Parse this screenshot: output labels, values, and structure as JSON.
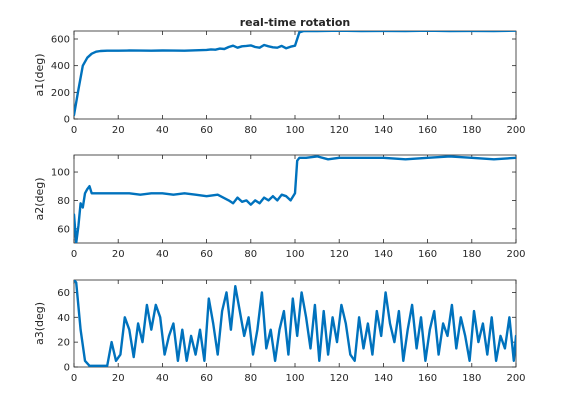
{
  "figure": {
    "title": "real-time rotation",
    "line_color": "#0072BD"
  },
  "chart_data": [
    {
      "type": "line",
      "title": "real-time rotation",
      "xlabel": "",
      "ylabel": "a1(deg)",
      "xlim": [
        0,
        200
      ],
      "ylim": [
        0,
        660
      ],
      "xticks": [
        0,
        20,
        40,
        60,
        80,
        100,
        120,
        140,
        160,
        180,
        200
      ],
      "yticks": [
        0,
        200,
        400,
        600
      ],
      "grid": false,
      "series": [
        {
          "x": [
            0,
            2,
            4,
            6,
            8,
            10,
            12,
            15,
            20,
            25,
            30,
            35,
            40,
            45,
            50,
            55,
            60,
            62,
            64,
            66,
            68,
            70,
            72,
            74,
            76,
            78,
            80,
            82,
            84,
            86,
            88,
            90,
            92,
            94,
            96,
            98,
            100,
            102,
            104,
            110,
            120,
            130,
            140,
            150,
            160,
            170,
            180,
            190,
            200
          ],
          "y": [
            30,
            220,
            400,
            460,
            490,
            505,
            510,
            512,
            512,
            514,
            513,
            512,
            514,
            513,
            512,
            515,
            518,
            522,
            520,
            528,
            525,
            540,
            550,
            535,
            545,
            548,
            552,
            540,
            535,
            555,
            545,
            538,
            535,
            548,
            530,
            542,
            550,
            650,
            660,
            660,
            662,
            660,
            661,
            660,
            662,
            660,
            661,
            660,
            662
          ]
        }
      ]
    },
    {
      "type": "line",
      "xlabel": "",
      "ylabel": "a2(deg)",
      "xlim": [
        0,
        200
      ],
      "ylim": [
        50,
        112
      ],
      "xticks": [
        0,
        20,
        40,
        60,
        80,
        100,
        120,
        140,
        160,
        180,
        200
      ],
      "yticks": [
        60,
        80,
        100
      ],
      "grid": false,
      "series": [
        {
          "x": [
            0,
            1,
            2,
            3,
            4,
            5,
            6,
            7,
            8,
            9,
            10,
            12,
            15,
            20,
            25,
            30,
            35,
            40,
            45,
            50,
            55,
            60,
            65,
            70,
            72,
            74,
            76,
            78,
            80,
            82,
            84,
            86,
            88,
            90,
            92,
            94,
            96,
            98,
            100,
            101,
            102,
            105,
            110,
            115,
            120,
            130,
            140,
            150,
            160,
            170,
            180,
            190,
            200
          ],
          "y": [
            70,
            50,
            62,
            78,
            75,
            85,
            88,
            90,
            85,
            85,
            85,
            85,
            85,
            85,
            85,
            84,
            85,
            85,
            84,
            85,
            84,
            83,
            84,
            80,
            78,
            82,
            79,
            80,
            77,
            80,
            78,
            82,
            80,
            83,
            80,
            84,
            83,
            80,
            85,
            108,
            110,
            110,
            111,
            109,
            110,
            110,
            110,
            109,
            110,
            111,
            110,
            109,
            110
          ]
        }
      ]
    },
    {
      "type": "line",
      "xlabel": "",
      "ylabel": "a3(deg)",
      "xlim": [
        0,
        200
      ],
      "ylim": [
        0,
        70
      ],
      "xticks": [
        0,
        20,
        40,
        60,
        80,
        100,
        120,
        140,
        160,
        180,
        200
      ],
      "yticks": [
        0,
        20,
        40,
        60
      ],
      "grid": false,
      "series": [
        {
          "x": [
            0,
            1,
            3,
            5,
            7,
            10,
            13,
            15,
            17,
            19,
            21,
            23,
            25,
            27,
            29,
            31,
            33,
            35,
            37,
            39,
            41,
            43,
            45,
            47,
            49,
            51,
            53,
            55,
            57,
            59,
            61,
            63,
            65,
            67,
            69,
            71,
            73,
            75,
            77,
            79,
            81,
            83,
            85,
            87,
            89,
            91,
            93,
            95,
            97,
            99,
            101,
            103,
            105,
            107,
            109,
            111,
            113,
            115,
            117,
            119,
            121,
            123,
            125,
            127,
            129,
            131,
            133,
            135,
            137,
            139,
            141,
            143,
            145,
            147,
            149,
            151,
            153,
            155,
            157,
            159,
            161,
            163,
            165,
            167,
            169,
            171,
            173,
            175,
            177,
            179,
            181,
            183,
            185,
            187,
            189,
            191,
            193,
            195,
            197,
            199,
            200
          ],
          "y": [
            70,
            68,
            30,
            5,
            1,
            1,
            1,
            1,
            20,
            5,
            10,
            40,
            30,
            8,
            35,
            20,
            50,
            30,
            50,
            40,
            10,
            25,
            35,
            5,
            30,
            5,
            25,
            10,
            30,
            5,
            55,
            35,
            10,
            45,
            60,
            30,
            65,
            45,
            25,
            40,
            10,
            30,
            60,
            15,
            30,
            5,
            30,
            45,
            10,
            55,
            25,
            60,
            40,
            15,
            50,
            5,
            45,
            10,
            40,
            20,
            50,
            35,
            10,
            5,
            40,
            15,
            35,
            10,
            45,
            25,
            60,
            35,
            20,
            45,
            5,
            30,
            50,
            15,
            40,
            5,
            30,
            45,
            10,
            35,
            25,
            50,
            15,
            40,
            25,
            5,
            45,
            20,
            35,
            10,
            40,
            5,
            25,
            15,
            40,
            5,
            25
          ]
        }
      ]
    }
  ]
}
